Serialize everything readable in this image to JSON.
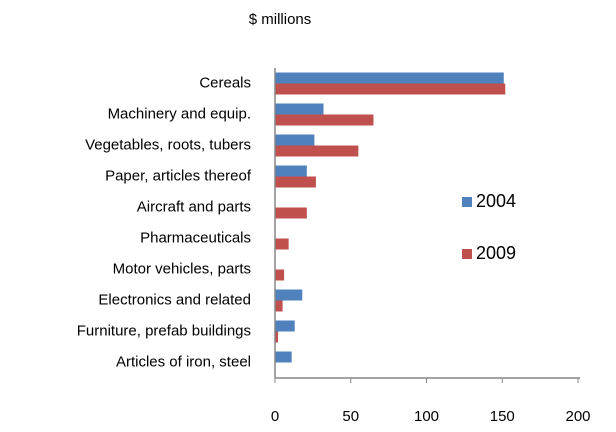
{
  "chart_data": {
    "type": "bar",
    "orientation": "horizontal",
    "title": "$ millions",
    "categories": [
      "Cereals",
      "Machinery and equip.",
      "Vegetables, roots, tubers",
      "Paper, articles thereof",
      "Aircraft and parts",
      "Pharmaceuticals",
      "Motor vehicles, parts",
      "Electronics and related",
      "Furniture, prefab buildings",
      "Articles of iron, steel"
    ],
    "series": [
      {
        "name": "2004",
        "color": "#4f81bd",
        "values": [
          151,
          32,
          26,
          21,
          0,
          0,
          0,
          18,
          13,
          11
        ]
      },
      {
        "name": "2009",
        "color": "#c0504d",
        "values": [
          152,
          65,
          55,
          27,
          21,
          9,
          6,
          5,
          2,
          0
        ]
      }
    ],
    "xlim": [
      0,
      200
    ],
    "xticks": [
      0,
      50,
      100,
      150,
      200
    ],
    "grid": false,
    "legend": "right"
  }
}
